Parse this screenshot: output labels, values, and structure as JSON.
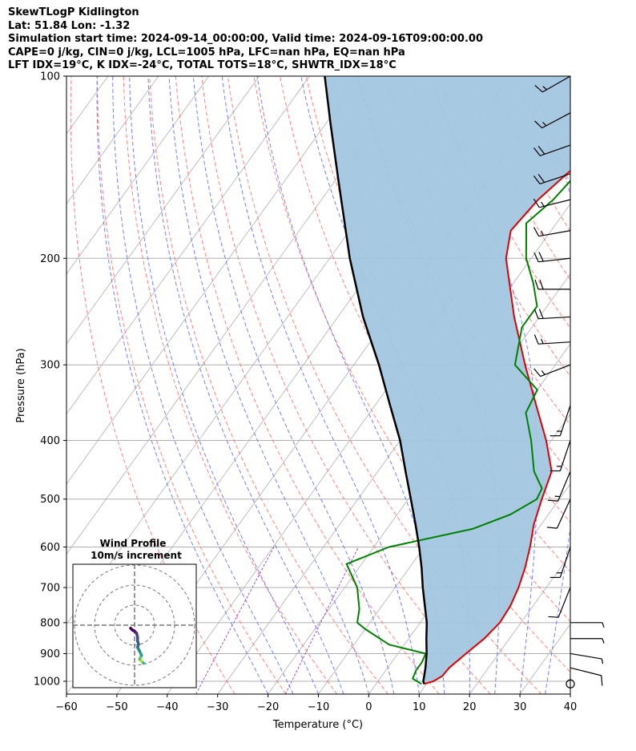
{
  "header": {
    "line1": "SkewTLogP Kidlington",
    "line2": "Lat: 51.84   Lon: -1.32",
    "line3": "Simulation start time: 2024-09-14_00:00:00, Valid time: 2024-09-16T09:00:00.00",
    "line4": "CAPE=0 j/kg, CIN=0 j/kg, LCL=1005 hPa, LFC=nan hPa, EQ=nan hPa",
    "line5": "LFT IDX=19°C, K IDX=-24°C, TOTAL TOTS=18°C, SHWTR_IDX=18°C"
  },
  "chart_data": {
    "type": "line",
    "subtype": "skew-T log-P diagram",
    "xlabel": "Temperature (°C)",
    "ylabel": "Pressure (hPa)",
    "xlim": [
      -60,
      40
    ],
    "ylim": [
      1050,
      100
    ],
    "yscale": "log",
    "x_ticks": [
      "−60",
      "−50",
      "−40",
      "−30",
      "−20",
      "−10",
      "0",
      "10",
      "20",
      "30",
      "40"
    ],
    "y_ticks": [
      100,
      200,
      300,
      400,
      500,
      600,
      700,
      800,
      900,
      1000
    ],
    "grid": true,
    "colors": {
      "temperature": "#e00000",
      "dewpoint": "#008000",
      "parcel": "#000000",
      "cape_cin_fill": "#a3c6e0",
      "dry_adiabat": "#ff6b6b",
      "moist_adiabat": "#5a6bff",
      "mixing_ratio": "#9a4fcf",
      "isotherm": "#b0b0b0"
    },
    "series": [
      {
        "key": "temperature",
        "points": [
          [
            1010,
            9.5
          ],
          [
            1000,
            11
          ],
          [
            980,
            12
          ],
          [
            950,
            12.2
          ],
          [
            900,
            13.5
          ],
          [
            850,
            15
          ],
          [
            800,
            15.8
          ],
          [
            750,
            15.5
          ],
          [
            700,
            14.5
          ],
          [
            650,
            13
          ],
          [
            600,
            11
          ],
          [
            550,
            8.5
          ],
          [
            500,
            6.5
          ],
          [
            450,
            4.5
          ],
          [
            400,
            -1
          ],
          [
            350,
            -8
          ],
          [
            300,
            -16
          ],
          [
            250,
            -25
          ],
          [
            200,
            -35
          ],
          [
            180,
            -38
          ],
          [
            160,
            -37
          ],
          [
            145,
            -35
          ],
          [
            130,
            -32
          ],
          [
            120,
            -30
          ],
          [
            110,
            -29
          ],
          [
            100,
            -30
          ]
        ]
      },
      {
        "key": "dewpoint",
        "points": [
          [
            1010,
            9
          ],
          [
            990,
            6.5
          ],
          [
            960,
            6
          ],
          [
            930,
            6
          ],
          [
            900,
            5.5
          ],
          [
            870,
            -3
          ],
          [
            820,
            -10
          ],
          [
            800,
            -12.5
          ],
          [
            760,
            -14
          ],
          [
            700,
            -17.5
          ],
          [
            640,
            -23
          ],
          [
            600,
            -17
          ],
          [
            560,
            -3
          ],
          [
            530,
            2.5
          ],
          [
            500,
            5.5
          ],
          [
            480,
            5
          ],
          [
            450,
            1
          ],
          [
            400,
            -4
          ],
          [
            360,
            -9
          ],
          [
            330,
            -10
          ],
          [
            300,
            -18
          ],
          [
            260,
            -22
          ],
          [
            240,
            -22
          ],
          [
            220,
            -26
          ],
          [
            200,
            -31
          ],
          [
            175,
            -36
          ],
          [
            160,
            -34
          ],
          [
            145,
            -33
          ],
          [
            130,
            -36
          ],
          [
            120,
            -38
          ],
          [
            100,
            -40
          ]
        ]
      },
      {
        "key": "parcel",
        "points": [
          [
            1010,
            9.5
          ],
          [
            1000,
            9
          ],
          [
            950,
            7.5
          ],
          [
            900,
            5.7
          ],
          [
            850,
            3.5
          ],
          [
            800,
            1.3
          ],
          [
            750,
            -1.5
          ],
          [
            700,
            -4.5
          ],
          [
            650,
            -7.5
          ],
          [
            600,
            -11
          ],
          [
            550,
            -15
          ],
          [
            500,
            -19.5
          ],
          [
            450,
            -24.5
          ],
          [
            400,
            -30
          ],
          [
            350,
            -37
          ],
          [
            300,
            -45
          ],
          [
            250,
            -55
          ],
          [
            200,
            -66
          ],
          [
            150,
            -79
          ],
          [
            120,
            -89
          ],
          [
            100,
            -97
          ]
        ]
      }
    ],
    "wind_barbs": [
      {
        "p": 1010,
        "u": 0,
        "v": 0
      },
      {
        "p": 950,
        "u": -8,
        "v": 2
      },
      {
        "p": 900,
        "u": -6,
        "v": 1
      },
      {
        "p": 850,
        "u": -4,
        "v": 0
      },
      {
        "p": 800,
        "u": -3,
        "v": 0
      },
      {
        "p": 700,
        "u": 4,
        "v": 10
      },
      {
        "p": 600,
        "u": 4,
        "v": 12
      },
      {
        "p": 500,
        "u": 5,
        "v": 11
      },
      {
        "p": 450,
        "u": 5,
        "v": 12
      },
      {
        "p": 400,
        "u": 4,
        "v": 12
      },
      {
        "p": 350,
        "u": 4,
        "v": 12
      },
      {
        "p": 300,
        "u": 13,
        "v": 5
      },
      {
        "p": 275,
        "u": 16,
        "v": 1
      },
      {
        "p": 250,
        "u": 18,
        "v": 1
      },
      {
        "p": 225,
        "u": 18,
        "v": 0
      },
      {
        "p": 200,
        "u": 18,
        "v": 2
      },
      {
        "p": 180,
        "u": 17,
        "v": 3
      },
      {
        "p": 160,
        "u": 16,
        "v": 4
      },
      {
        "p": 145,
        "u": 18,
        "v": 6
      },
      {
        "p": 130,
        "u": 17,
        "v": 6
      },
      {
        "p": 115,
        "u": 15,
        "v": 8
      },
      {
        "p": 100,
        "u": 14,
        "v": 8
      }
    ],
    "hodograph": {
      "title": "Wind Profile",
      "subtitle": "10m/s increment",
      "rings": [
        10,
        20,
        30
      ],
      "points": [
        [
          4.5,
          -19
        ],
        [
          3.5,
          -18
        ],
        [
          2.5,
          -17
        ],
        [
          3.5,
          -15
        ],
        [
          2.5,
          -13
        ],
        [
          1.5,
          -11
        ],
        [
          2.0,
          -9.5
        ],
        [
          1.5,
          -8
        ],
        [
          1.5,
          -6
        ],
        [
          1.0,
          -4
        ],
        [
          0,
          -3
        ],
        [
          -1,
          -2.5
        ],
        [
          -2,
          -1.5
        ]
      ]
    }
  }
}
